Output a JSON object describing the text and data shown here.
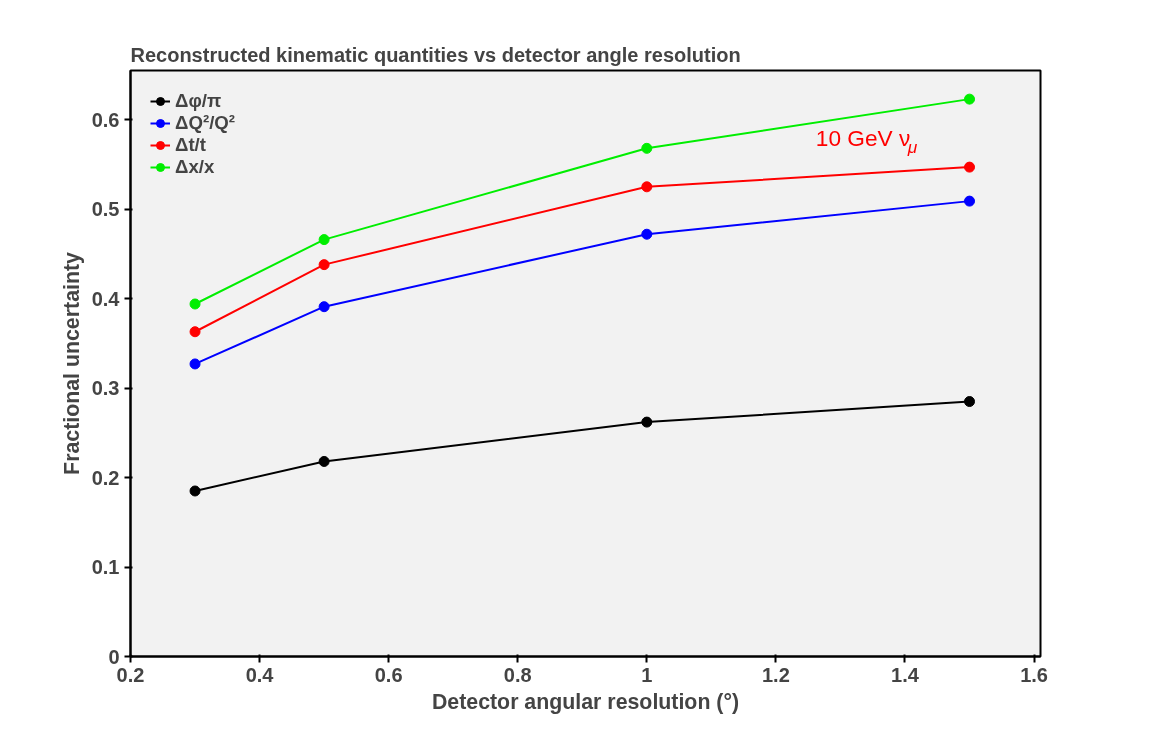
{
  "chart_data": {
    "type": "line",
    "title": "Reconstructed kinematic quantities vs detector angle resolution",
    "xlabel": "Detector angular resolution (°)",
    "ylabel": "Fractional uncertainty",
    "x": [
      0.3,
      0.5,
      1.0,
      1.5
    ],
    "series": [
      {
        "name": "Δφ/π",
        "color": "#000000",
        "values": [
          0.185,
          0.218,
          0.262,
          0.285
        ]
      },
      {
        "name": "ΔQ²/Q²",
        "color": "#0000ff",
        "values": [
          0.327,
          0.391,
          0.472,
          0.509
        ]
      },
      {
        "name": "Δt/t",
        "color": "#ff0000",
        "values": [
          0.363,
          0.438,
          0.525,
          0.547
        ]
      },
      {
        "name": "Δx/x",
        "color": "#00ee00",
        "values": [
          0.394,
          0.466,
          0.568,
          0.623
        ]
      }
    ],
    "annotations": [
      "10 GeV ν$_{μ}$"
    ],
    "xlim": [
      0.2,
      1.61
    ],
    "ylim": [
      0,
      0.655
    ],
    "xticks": [
      0.2,
      0.4,
      0.6,
      0.8,
      1,
      1.2,
      1.4,
      1.6
    ],
    "yticks": [
      0,
      0.1,
      0.2,
      0.3,
      0.4,
      0.5,
      0.6
    ],
    "legend": "top left",
    "marker": "circle",
    "line_style": "solid",
    "grid": false
  }
}
